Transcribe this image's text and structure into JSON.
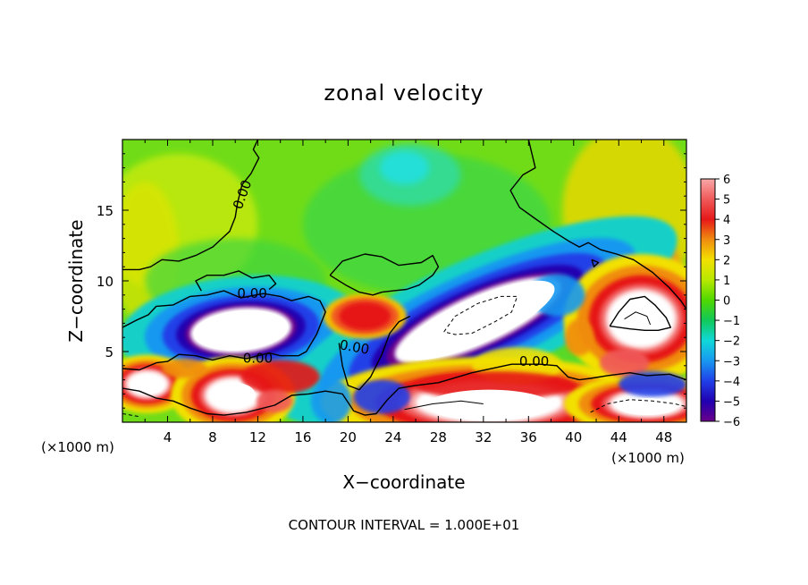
{
  "chart_data": {
    "type": "heatmap",
    "title": "zonal velocity",
    "xlabel": "X−coordinate",
    "ylabel": "Z−coordinate",
    "x_unit_left": "(×1000 m)",
    "x_unit_right": "(×1000 m)",
    "footer": "CONTOUR INTERVAL = 1.000E+01",
    "xlim": [
      0,
      50
    ],
    "ylim": [
      0,
      20
    ],
    "x_ticks": [
      4,
      8,
      12,
      16,
      20,
      24,
      28,
      32,
      36,
      40,
      44,
      48
    ],
    "x_tick_labels": [
      "4",
      "8",
      "12",
      "16",
      "20",
      "24",
      "28",
      "32",
      "36",
      "40",
      "44",
      "48"
    ],
    "y_ticks": [
      5,
      10,
      15
    ],
    "y_tick_labels": [
      "5",
      "10",
      "15"
    ],
    "colorbar": {
      "range": [
        -6,
        6
      ],
      "ticks": [
        6,
        5,
        4,
        3,
        2,
        1,
        0,
        -1,
        -2,
        -3,
        -4,
        -5,
        -6
      ],
      "tick_labels": [
        "6",
        "5",
        "4",
        "3",
        "2",
        "1",
        "0",
        "−1",
        "−2",
        "−3",
        "−4",
        "−5",
        "−6"
      ],
      "colors": [
        "#f8a8a8",
        "#f05a5a",
        "#e61818",
        "#f08c10",
        "#f2e000",
        "#b8e800",
        "#50d800",
        "#10c858",
        "#10d8d8",
        "#1898f0",
        "#2040e8",
        "#2000b0",
        "#6a008a"
      ]
    },
    "contour_label": "0.00",
    "contour_label_positions": [
      {
        "x": 11,
        "y": 16
      },
      {
        "x": 11.5,
        "y": 8.8
      },
      {
        "x": 12,
        "y": 4.2
      },
      {
        "x": 20.5,
        "y": 5
      },
      {
        "x": 36.5,
        "y": 4
      }
    ],
    "features": [
      {
        "kind": "negative_core",
        "cx": 10.5,
        "cy": 6.5,
        "rx": 4.5,
        "ry": 1.6,
        "angle": -5
      },
      {
        "kind": "negative_core",
        "cx": 31.5,
        "cy": 7.2,
        "rx": 8,
        "ry": 1.8,
        "angle": -24
      },
      {
        "kind": "positive_core",
        "cx": 2.2,
        "cy": 2.7,
        "rx": 1.8,
        "ry": 0.9
      },
      {
        "kind": "positive_core",
        "cx": 9.8,
        "cy": 1.9,
        "rx": 2.4,
        "ry": 1.2
      },
      {
        "kind": "positive_core",
        "cx": 32.5,
        "cy": 1.4,
        "rx": 6.5,
        "ry": 1.4
      },
      {
        "kind": "positive_core",
        "cx": 46,
        "cy": 7.3,
        "rx": 3,
        "ry": 2
      },
      {
        "kind": "positive_core",
        "cx": 46.5,
        "cy": 1.3,
        "rx": 3.2,
        "ry": 0.9
      },
      {
        "kind": "positive_patch",
        "cx": 21.5,
        "cy": 7.5,
        "rx": 2.3,
        "ry": 1.0
      },
      {
        "kind": "negative_patch",
        "cx": 25.5,
        "cy": 17.5,
        "rx": 4.5,
        "ry": 2.2
      }
    ]
  }
}
